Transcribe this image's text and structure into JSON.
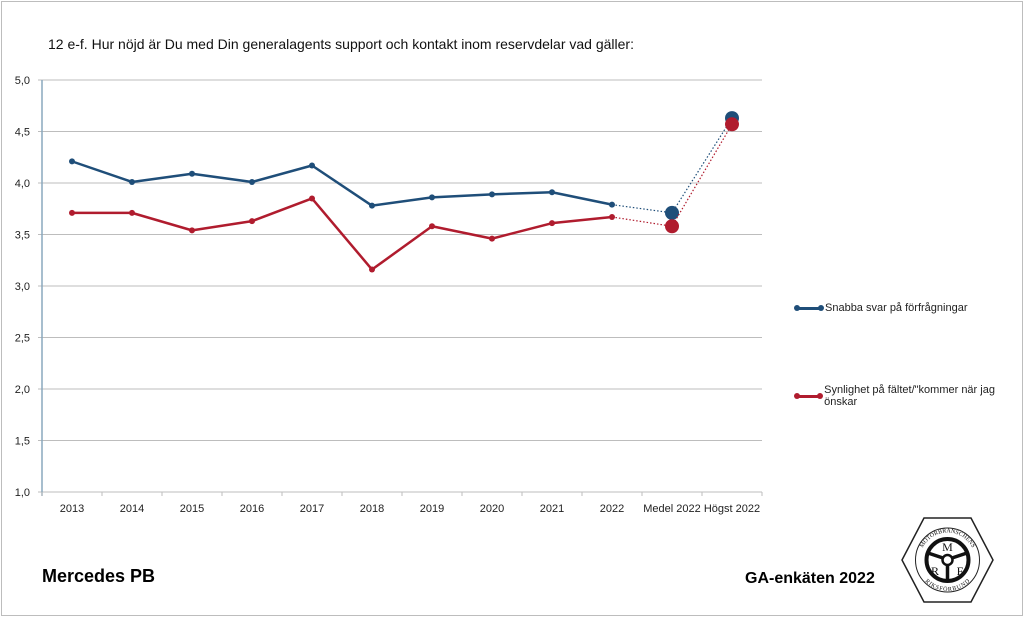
{
  "title": "12 e-f. Hur nöjd är Du med Din generalagents support och kontakt inom reservdelar vad gäller:",
  "footer": {
    "brand": "Mercedes PB",
    "survey": "GA-enkäten 2022"
  },
  "logo": {
    "top_text": "MOTORBRANSCHENS",
    "bottom_text": "RIKSFÖRBUND",
    "letters": [
      "M",
      "R",
      "F"
    ]
  },
  "chart_data": {
    "type": "line",
    "title": "12 e-f. Hur nöjd är Du med Din generalagents support och kontakt inom reservdelar vad gäller:",
    "categories": [
      "2013",
      "2014",
      "2015",
      "2016",
      "2017",
      "2018",
      "2019",
      "2020",
      "2021",
      "2022",
      "Medel 2022",
      "Högst 2022"
    ],
    "ylim": [
      1.0,
      5.0
    ],
    "yticks": [
      "1,0",
      "1,5",
      "2,0",
      "2,5",
      "3,0",
      "3,5",
      "4,0",
      "4,5",
      "5,0"
    ],
    "grid": true,
    "legend": "right",
    "xlabel": "",
    "ylabel": "",
    "series": [
      {
        "name": "Snabba svar på förfrågningar",
        "color": "#1f4e79",
        "values": [
          4.21,
          4.01,
          4.09,
          4.01,
          4.17,
          3.78,
          3.86,
          3.89,
          3.91,
          3.79,
          3.71,
          4.63
        ]
      },
      {
        "name": "Synlighet på fältet/\"kommer när jag önskar",
        "color": "#b01c2e",
        "values": [
          3.71,
          3.71,
          3.54,
          3.63,
          3.85,
          3.16,
          3.58,
          3.46,
          3.61,
          3.67,
          3.58,
          4.57
        ]
      }
    ]
  }
}
